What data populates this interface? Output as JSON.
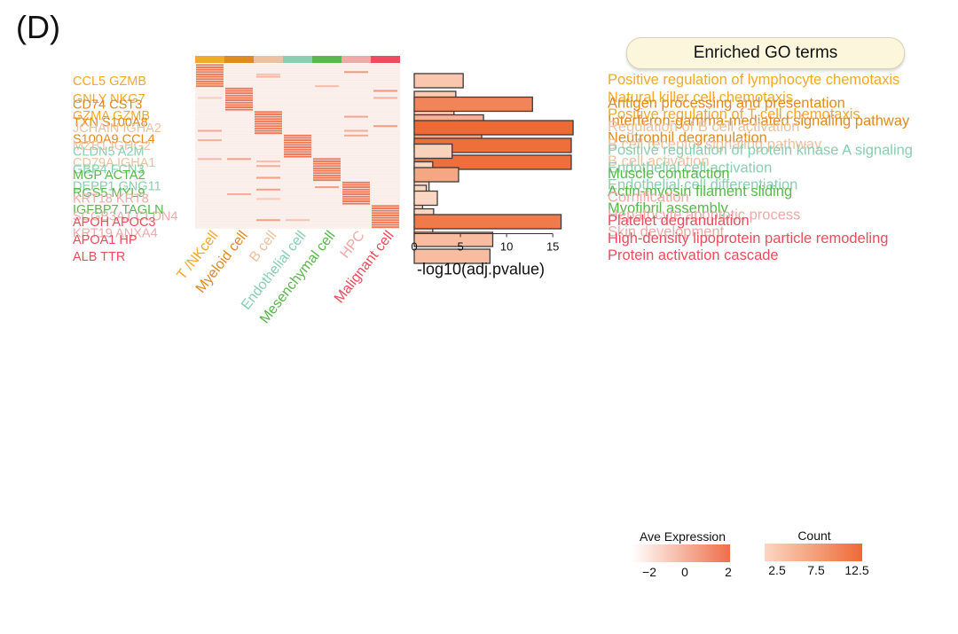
{
  "panel_label": "(D)",
  "go_header": "Enriched GO terms",
  "colors": {
    "T /NKcell": "#f2a82c",
    "Myeloid cell": "#e08a22",
    "B cell": "#ecc19f",
    "Endothelial cell": "#88cfb0",
    "Mesenchymal cell": "#58b84a",
    "HPC": "#eeaaa6",
    "Malignant cell": "#ec4d5c",
    "heat_high": "#ee6f4a",
    "heat_low": "#fbf0ec",
    "count_high": "#ee6a35",
    "count_low": "#fbd7c3"
  },
  "chart_data": [
    {
      "type": "heatmap",
      "title": "",
      "columns": [
        "T /NKcell",
        "Myeloid cell",
        "B cell",
        "Endothelial  cell",
        "Mesenchymal cell",
        "HPC",
        "Malignant cell"
      ],
      "gene_labels": [
        [
          "CCL5  GZMB",
          "GNLY  NKG7",
          "GZMA GZMB"
        ],
        [
          "CD74 CST3",
          "TXN  S100A8",
          "S100A9 CCL4"
        ],
        [
          "JCHAIN IGHA2",
          "MZB1 IGHG2",
          "CD79A IGHA1"
        ],
        [
          "CLDN5 A2M",
          "GBP4 FCN3",
          "DEPP1 GNG11"
        ],
        [
          "MGP ACTA2",
          "RGS5 MYL9",
          "IGFBP7 TAGLN"
        ],
        [
          "KRT18 KRT8",
          "SCGB3A1 CLDN4",
          "KRT19 ANXA4"
        ],
        [
          "APOH APOC3",
          "APOA1 HP",
          "ALB TTR"
        ]
      ],
      "rows_per_group": 10,
      "high_value": 2,
      "low_value": -2,
      "legend": {
        "title": "Ave Expression",
        "ticks": [
          -2,
          0,
          2
        ]
      }
    },
    {
      "type": "bar",
      "orientation": "horizontal",
      "xlabel": "-log10(adj.pvalue)",
      "xlim": [
        0,
        17
      ],
      "xticks": [
        0,
        5,
        10,
        15
      ],
      "terms": [
        "Positive regulation of lymphocyte chemotaxis",
        "Natural killer cell chemotaxis",
        "Positive regulation of T cell chemotaxis",
        "Antigen processing and presentation",
        "Interferon-gamma-mediated signaling pathway",
        "Neutrophil degranulation",
        "Regulation of B cell activation",
        "B cell receptor signaling pathway",
        "B cell activation",
        "Positive regulation of protein kinase A signaling",
        "Endothelial cell activation",
        "Endothelial cell differentiation",
        "Muscle contraction",
        "Actin-myosin filament sliding",
        "Myofibril assembly",
        "Cornification",
        "Hepatocyte apoptotic process",
        "Skin development",
        "Platelet degranulation",
        "High-density lipoprotein particle remodeling",
        "Protein activation cascade"
      ],
      "values": [
        5.3,
        4.5,
        4.3,
        12.8,
        7.5,
        7.3,
        17.2,
        17.0,
        17.0,
        4.1,
        2.0,
        1.6,
        4.8,
        1.3,
        0.9,
        2.5,
        2.1,
        2.0,
        15.9,
        8.5,
        8.2
      ],
      "counts": [
        4,
        3.5,
        3.5,
        10,
        6,
        7,
        12.5,
        12,
        12,
        3,
        2.5,
        2.5,
        7,
        2.5,
        2.5,
        2.5,
        2.5,
        2.5,
        11,
        5,
        5
      ],
      "legend": {
        "title": "Count",
        "ticks": [
          2.5,
          7.5,
          12.5
        ]
      }
    }
  ]
}
